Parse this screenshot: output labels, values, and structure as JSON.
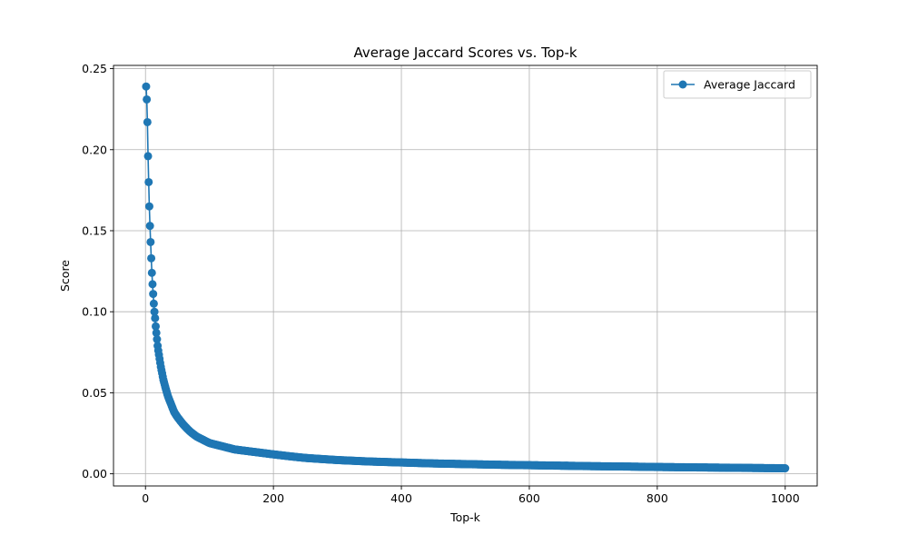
{
  "chart_data": {
    "type": "line",
    "title": "Average Jaccard Scores vs. Top-k",
    "xlabel": "Top-k",
    "ylabel": "Score",
    "xlim": [
      -50,
      1050
    ],
    "ylim": [
      -0.0075,
      0.252
    ],
    "xticks": [
      0,
      200,
      400,
      600,
      800,
      1000
    ],
    "xtick_labels": [
      "0",
      "200",
      "400",
      "600",
      "800",
      "1000"
    ],
    "yticks": [
      0.0,
      0.05,
      0.1,
      0.15,
      0.2,
      0.25
    ],
    "ytick_labels": [
      "0.00",
      "0.05",
      "0.10",
      "0.15",
      "0.20",
      "0.25"
    ],
    "grid": true,
    "legend_position": "top-right",
    "series": [
      {
        "name": "Average Jaccard",
        "color": "#1f77b4",
        "marker": "circle",
        "x": [
          1,
          2,
          3,
          4,
          5,
          6,
          7,
          8,
          9,
          10,
          11,
          12,
          13,
          14,
          15,
          16,
          17,
          18,
          19,
          20,
          22,
          24,
          26,
          28,
          30,
          35,
          40,
          45,
          50,
          60,
          70,
          80,
          90,
          100,
          120,
          140,
          160,
          180,
          200,
          250,
          300,
          350,
          400,
          450,
          500,
          550,
          600,
          650,
          700,
          750,
          800,
          850,
          900,
          950,
          1000
        ],
        "y": [
          0.239,
          0.231,
          0.217,
          0.196,
          0.18,
          0.165,
          0.153,
          0.143,
          0.133,
          0.124,
          0.117,
          0.111,
          0.105,
          0.1,
          0.096,
          0.091,
          0.087,
          0.083,
          0.079,
          0.076,
          0.071,
          0.066,
          0.062,
          0.058,
          0.055,
          0.048,
          0.043,
          0.038,
          0.035,
          0.03,
          0.026,
          0.023,
          0.021,
          0.019,
          0.017,
          0.015,
          0.014,
          0.013,
          0.012,
          0.0098,
          0.0085,
          0.0076,
          0.007,
          0.0064,
          0.006,
          0.0056,
          0.0053,
          0.005,
          0.0047,
          0.0045,
          0.0042,
          0.004,
          0.0038,
          0.0036,
          0.0034
        ]
      }
    ]
  }
}
